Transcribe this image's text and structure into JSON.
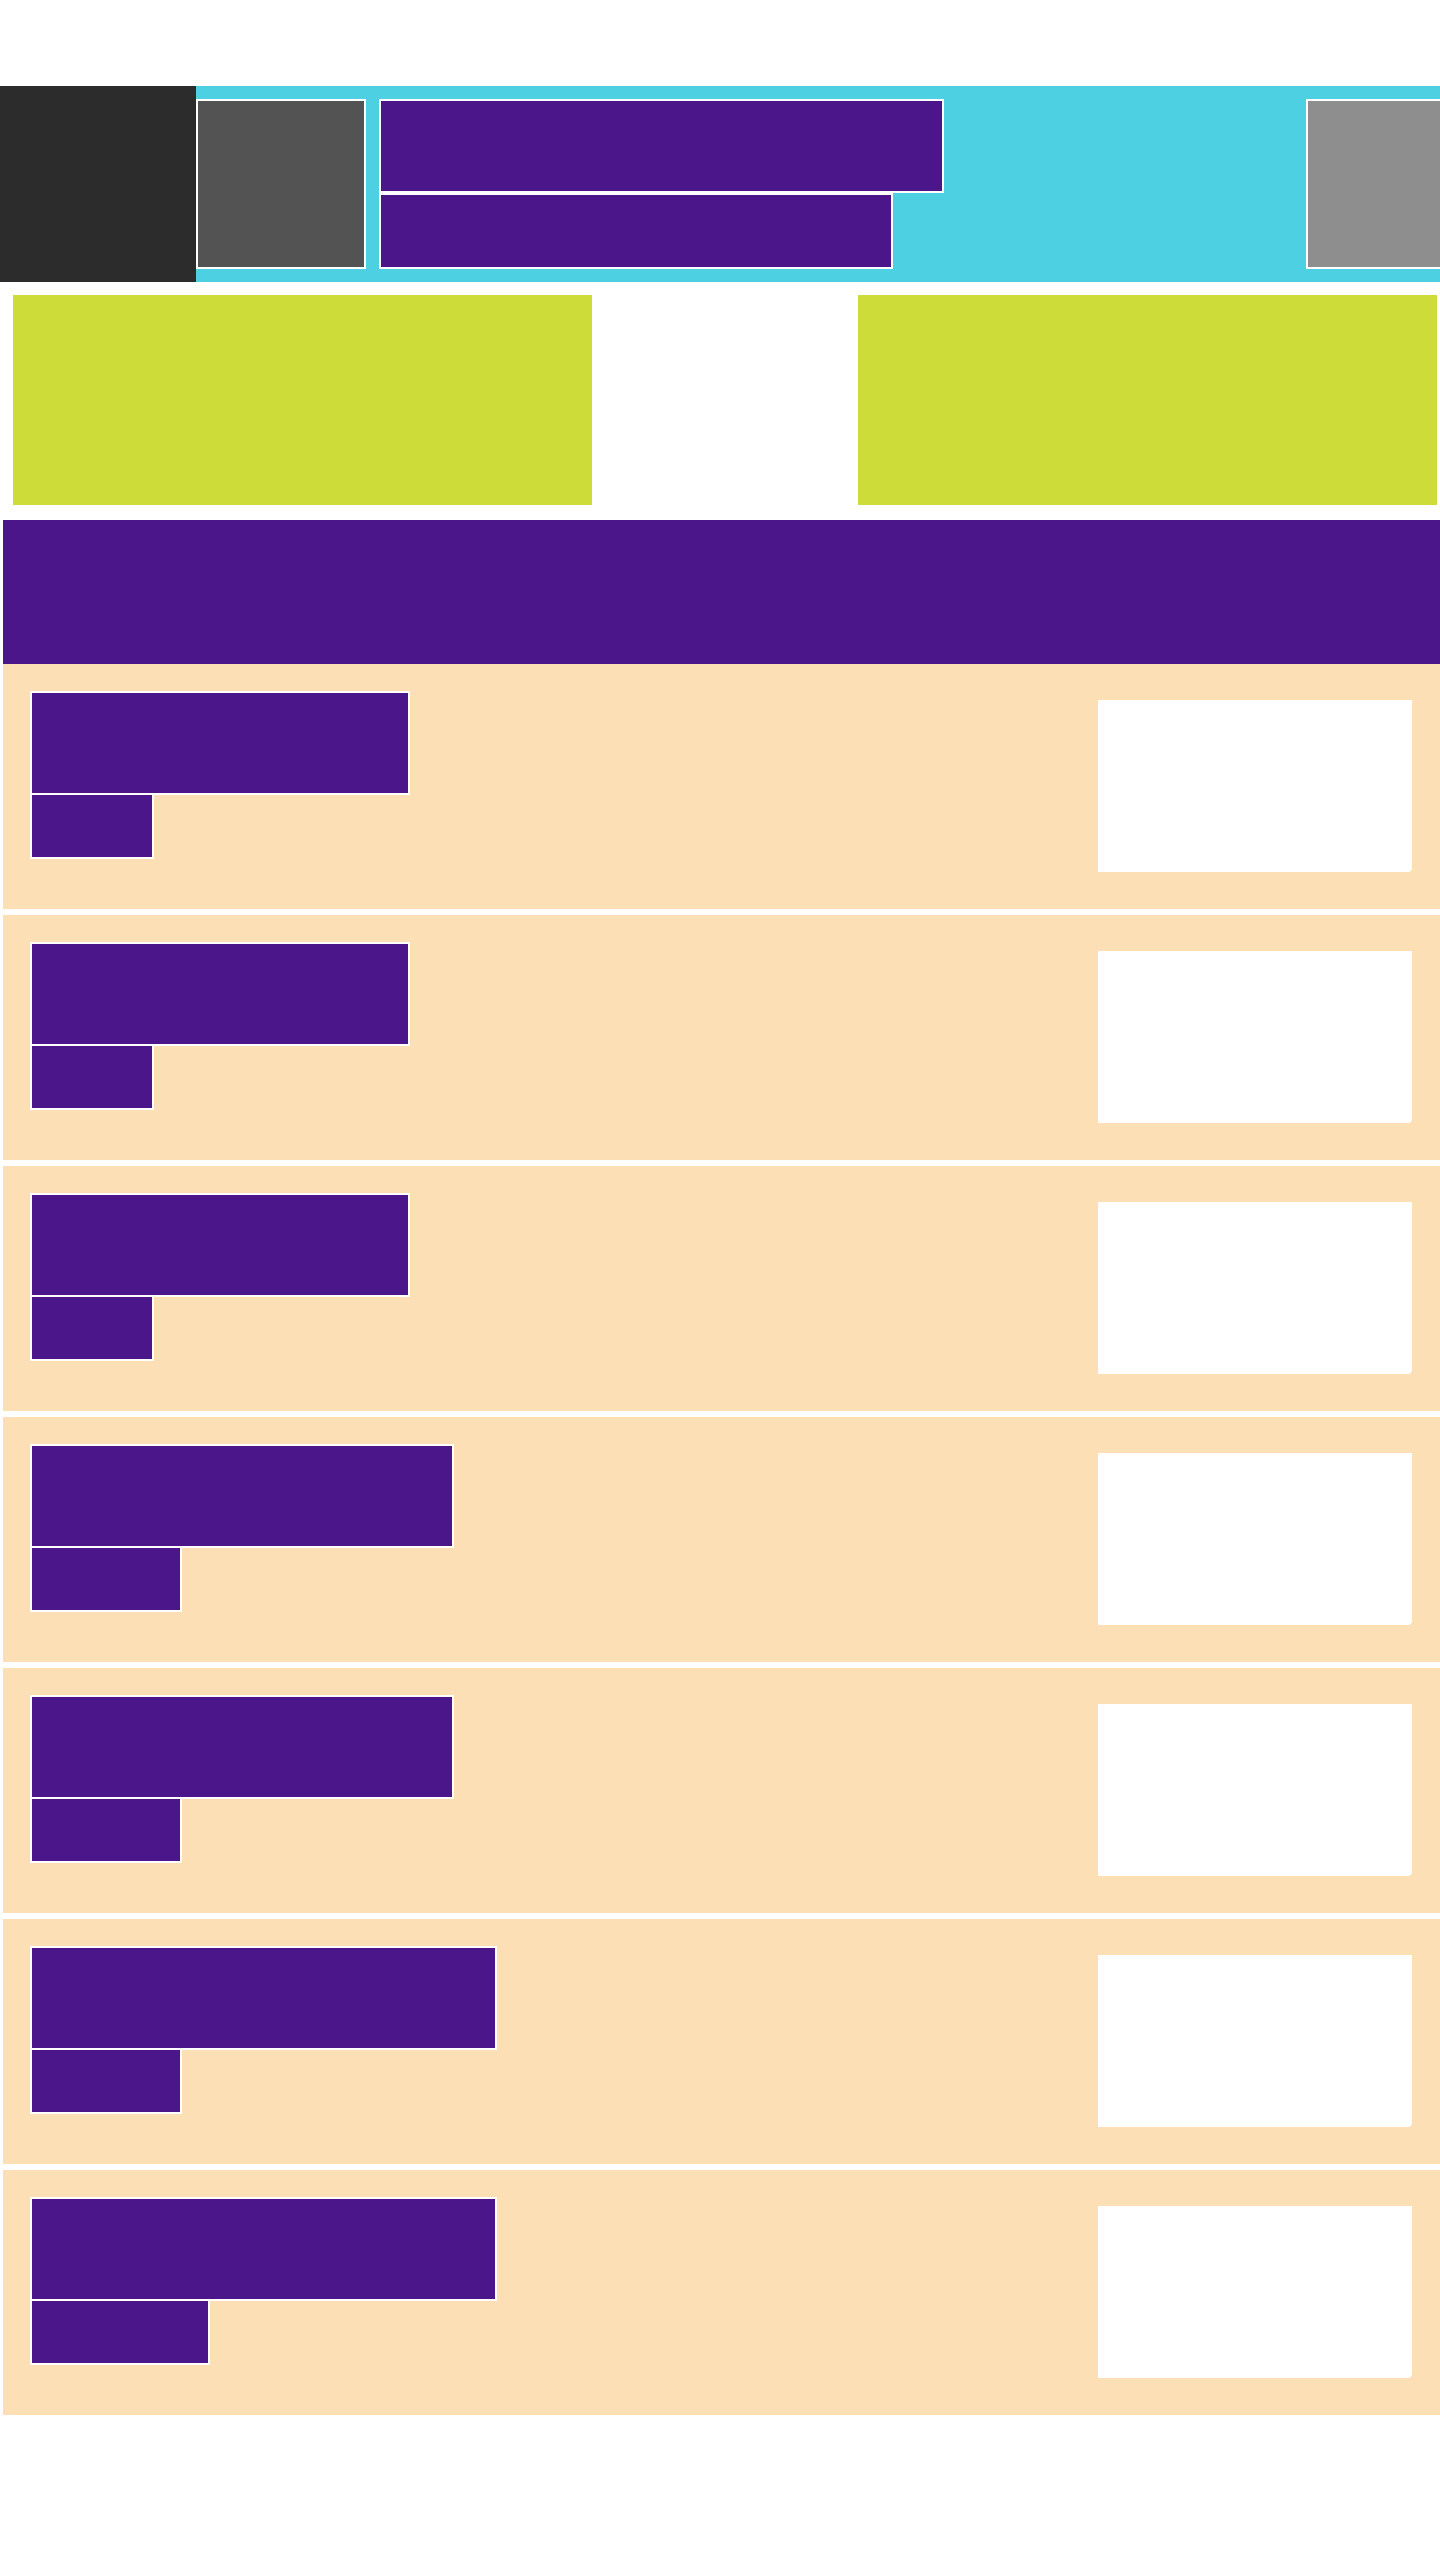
{
  "colors": {
    "page_bg": "#ffffff",
    "header_bg": "#4dd0e1",
    "nav_dark": "#2c2c2c",
    "nav_button": "#535353",
    "accent_purple": "#4a168a",
    "side_gray": "#8e8e8e",
    "tile_lime": "#cddc39",
    "row_bg": "#fcdfb4",
    "row_card": "#ffffff"
  },
  "header": {
    "nav_icon": "menu-placeholder",
    "side_icon": "action-placeholder"
  },
  "list": {
    "rows": [
      {
        "title_width": 380,
        "sub_width": 124
      },
      {
        "title_width": 380,
        "sub_width": 124
      },
      {
        "title_width": 380,
        "sub_width": 124
      },
      {
        "title_width": 424,
        "sub_width": 152
      },
      {
        "title_width": 424,
        "sub_width": 152
      },
      {
        "title_width": 467,
        "sub_width": 152
      },
      {
        "title_width": 467,
        "sub_width": 180
      }
    ]
  }
}
